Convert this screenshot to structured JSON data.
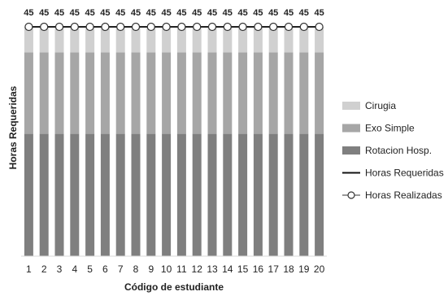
{
  "chart_data": {
    "type": "bar",
    "stacked": true,
    "categories": [
      "1",
      "2",
      "3",
      "4",
      "5",
      "6",
      "7",
      "8",
      "9",
      "10",
      "11",
      "12",
      "13",
      "14",
      "15",
      "16",
      "17",
      "18",
      "19",
      "20"
    ],
    "series": [
      {
        "name": "Rotacion Hosp.",
        "kind": "bar",
        "color": "#7f7f7f",
        "values": [
          24,
          24,
          24,
          24,
          24,
          24,
          24,
          24,
          24,
          24,
          24,
          24,
          24,
          24,
          24,
          24,
          24,
          24,
          24,
          24
        ]
      },
      {
        "name": "Exo Simple",
        "kind": "bar",
        "color": "#a6a6a6",
        "values": [
          16,
          16,
          16,
          16,
          16,
          16,
          16,
          16,
          16,
          16,
          16,
          16,
          16,
          16,
          16,
          16,
          16,
          16,
          16,
          16
        ]
      },
      {
        "name": "Cirugia",
        "kind": "bar",
        "color": "#d0d0d0",
        "values": [
          5,
          5,
          5,
          5,
          5,
          5,
          5,
          5,
          5,
          5,
          5,
          5,
          5,
          5,
          5,
          5,
          5,
          5,
          5,
          5
        ]
      },
      {
        "name": "Horas Requeridas",
        "kind": "line",
        "color": "#111111",
        "values": [
          45,
          45,
          45,
          45,
          45,
          45,
          45,
          45,
          45,
          45,
          45,
          45,
          45,
          45,
          45,
          45,
          45,
          45,
          45,
          45
        ]
      },
      {
        "name": "Horas Realizadas",
        "kind": "line-marker",
        "color": "#333333",
        "values": [
          45,
          45,
          45,
          45,
          45,
          45,
          45,
          45,
          45,
          45,
          45,
          45,
          45,
          45,
          45,
          45,
          45,
          45,
          45,
          45
        ]
      }
    ],
    "data_labels": [
      "45",
      "45",
      "45",
      "45",
      "45",
      "45",
      "45",
      "45",
      "45",
      "45",
      "45",
      "45",
      "45",
      "45",
      "45",
      "45",
      "45",
      "45",
      "45",
      "45"
    ],
    "legend_order": [
      "Cirugia",
      "Exo Simple",
      "Rotacion Hosp.",
      "Horas Requeridas",
      "Horas Realizadas"
    ],
    "title": "",
    "xlabel": "Código de estudiante",
    "ylabel": "Horas Requeridas",
    "ylim": [
      0,
      45
    ],
    "grid": false,
    "legend_position": "right"
  }
}
